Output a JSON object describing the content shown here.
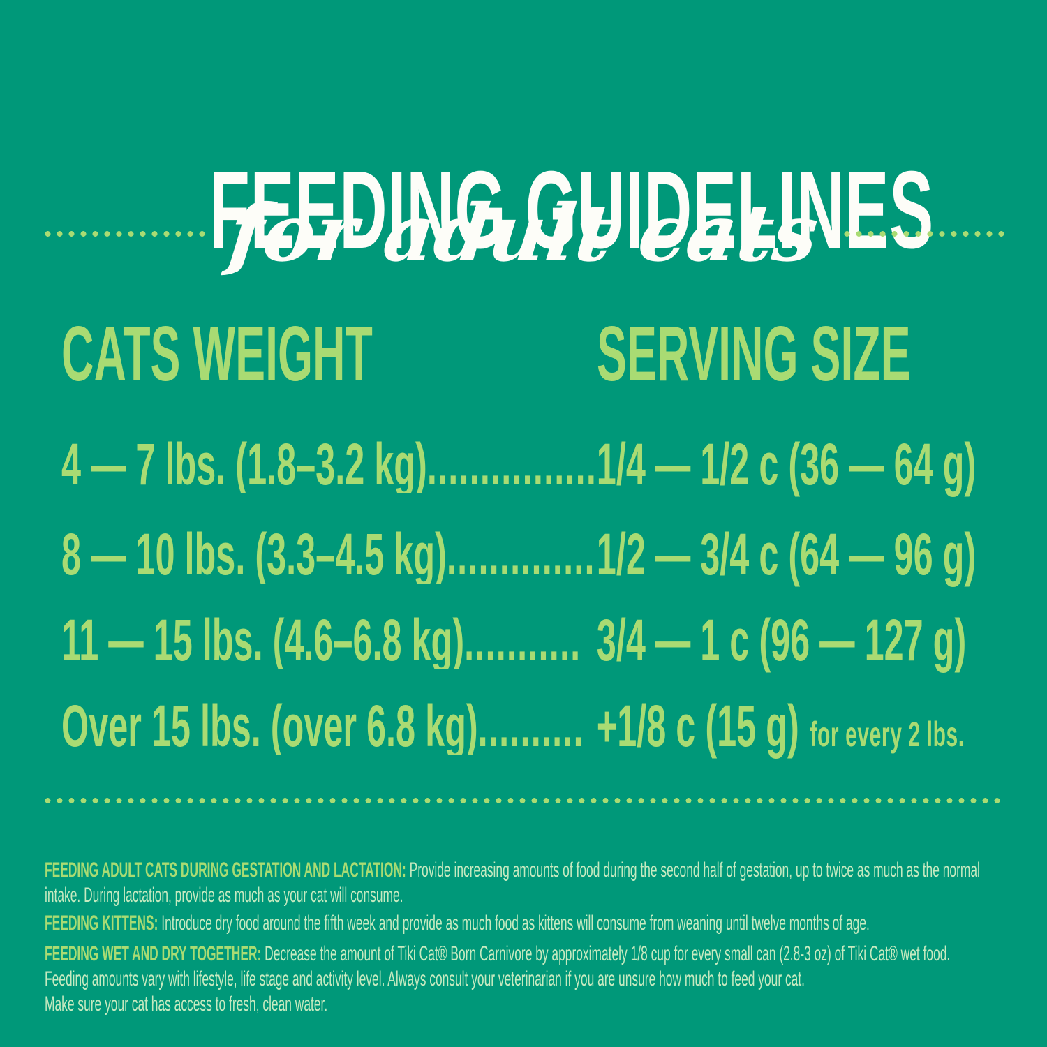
{
  "header": {
    "title": "FEEDING GUIDELINES",
    "subtitle": "for adult cats"
  },
  "table": {
    "weight_header": "CATS WEIGHT",
    "serving_header": "SERVING SIZE",
    "rows": [
      {
        "weight": "4 — 7 lbs. (1.8–3.2 kg)",
        "dots": "................",
        "serving": "1/4 — 1/2 c (36 — 64 g)",
        "note": ""
      },
      {
        "weight": "8 — 10 lbs. (3.3–4.5 kg)",
        "dots": "..............",
        "serving": "1/2 — 3/4 c (64 — 96 g)",
        "note": ""
      },
      {
        "weight": "11 — 15 lbs. (4.6–6.8 kg)",
        "dots": "...........",
        "serving": "3/4 — 1 c (96 — 127 g)",
        "note": ""
      },
      {
        "weight": "Over 15 lbs. (over 6.8 kg)",
        "dots": "..........",
        "serving": "+1/8 c (15 g)",
        "note": "for every 2 lbs."
      }
    ]
  },
  "footer": {
    "paragraphs": [
      {
        "lead": "FEEDING ADULT CATS DURING GESTATION AND LACTATION:",
        "lines": [
          "Provide increasing amounts of food during the second half of gestation, up to twice as much as the normal",
          "intake.  During lactation, provide as much as your cat will consume."
        ]
      },
      {
        "lead": "FEEDING KITTENS:",
        "lines": [
          "Introduce dry food around the fifth week and provide as much food as kittens will consume from weaning until twelve months of age."
        ]
      },
      {
        "lead": "FEEDING WET AND DRY TOGETHER:",
        "lines": [
          "Decrease the amount of Tiki Cat® Born Carnivore by approximately 1/8 cup for every small can (2.8-3 oz) of Tiki Cat® wet food.",
          "Feeding amounts vary with lifestyle, life stage and activity level.  Always consult your veterinarian if you are unsure how much to feed your cat.",
          "Make sure your cat has access to fresh, clean water."
        ]
      }
    ]
  },
  "colors": {
    "background": "#009879",
    "accent_green": "#A9DB73",
    "pale_green": "#C6EAC0",
    "white": "#FDFDF8"
  }
}
